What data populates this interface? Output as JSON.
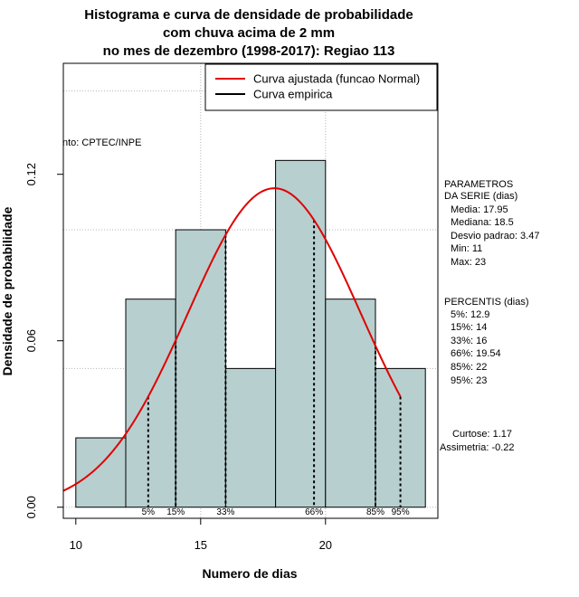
{
  "chart_data": {
    "type": "histogram",
    "title_lines": [
      "Histograma e curva de densidade de probabilidade",
      "com chuva acima de 2 mm",
      "no mes de dezembro (1998-2017): Regiao 113"
    ],
    "xlabel": "Numero de dias",
    "ylabel": "Densidade de probabilidade",
    "xlim": [
      9.5,
      24.5
    ],
    "ylim": [
      -0.004,
      0.16
    ],
    "x_ticks": [
      10,
      15,
      20
    ],
    "y_ticks": [
      0.0,
      0.06,
      0.12
    ],
    "y_tick_labels": [
      "0.00",
      "0.06",
      "0.12"
    ],
    "grid_y": [
      0.0,
      0.05,
      0.1,
      0.15
    ],
    "grid_x": [
      15,
      20
    ],
    "bins": [
      {
        "from": 10,
        "to": 12,
        "density": 0.025
      },
      {
        "from": 12,
        "to": 14,
        "density": 0.075
      },
      {
        "from": 14,
        "to": 16,
        "density": 0.1
      },
      {
        "from": 16,
        "to": 18,
        "density": 0.05
      },
      {
        "from": 18,
        "to": 20,
        "density": 0.125
      },
      {
        "from": 20,
        "to": 22,
        "density": 0.075
      },
      {
        "from": 22,
        "to": 24,
        "density": 0.05
      }
    ],
    "bar_color": "#b7cfcf",
    "normal_curve": {
      "mean": 17.95,
      "sd": 3.47,
      "from": 9.5,
      "to": 23,
      "color": "#e00000"
    },
    "percentile_lines": [
      {
        "label": "5%",
        "x": 12.9
      },
      {
        "label": "15%",
        "x": 14
      },
      {
        "label": "33%",
        "x": 16
      },
      {
        "label": "66%",
        "x": 19.54
      },
      {
        "label": "85%",
        "x": 22
      },
      {
        "label": "95%",
        "x": 23
      }
    ],
    "legend": [
      {
        "label": "Curva ajustada (funcao Normal)",
        "color": "#e00000"
      },
      {
        "label": "Curva empirica",
        "color": "#000000"
      }
    ],
    "source_text": "nto: CPTEC/INPE",
    "parameters_block": [
      "PARAMETROS",
      "DA SERIE (dias)",
      "Media: 17.95",
      "Mediana: 18.5",
      "Desvio padrao: 3.47",
      "Min: 11",
      "Max: 23"
    ],
    "percentis_block": [
      "PERCENTIS (dias)",
      "5%: 12.9",
      "15%: 14",
      "33%: 16",
      "66%: 19.54",
      "85%: 22",
      "95%: 23"
    ],
    "shape_block": [
      "Curtose: 1.17",
      "Assimetria: -0.22"
    ]
  }
}
